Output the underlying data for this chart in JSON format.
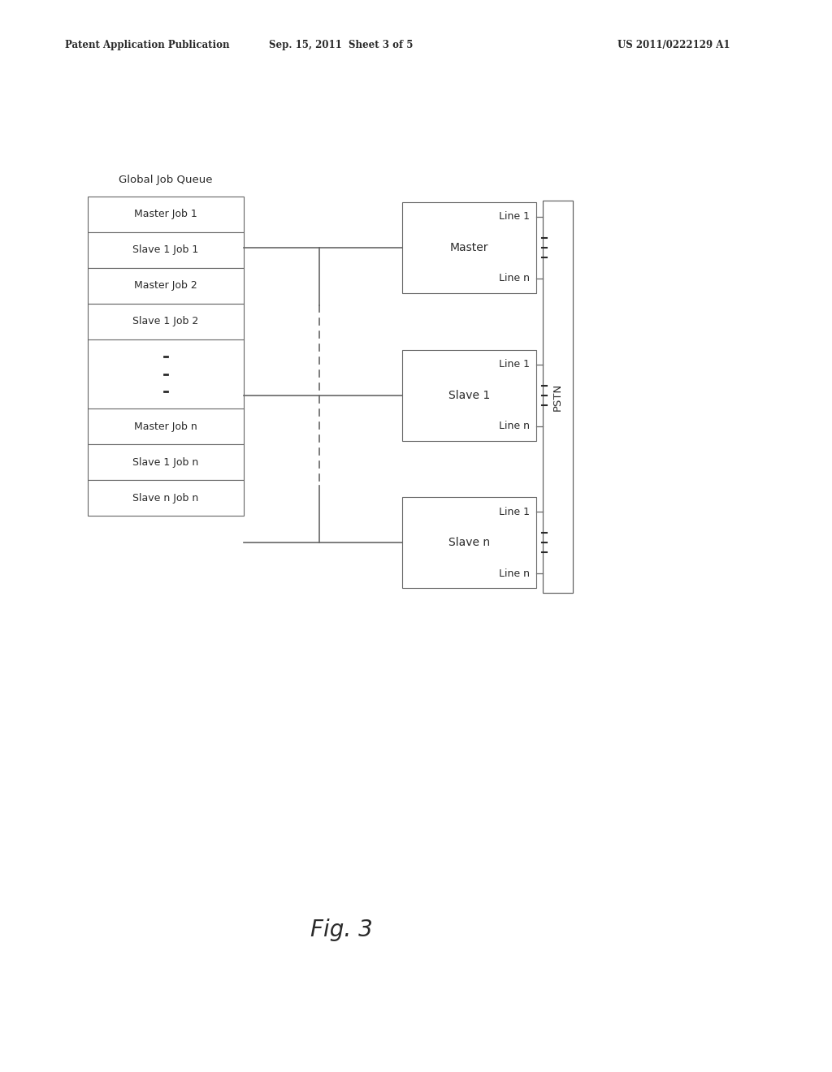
{
  "bg_color": "#ffffff",
  "header_left": "Patent Application Publication",
  "header_center": "Sep. 15, 2011  Sheet 3 of 5",
  "header_right": "US 2011/0222129 A1",
  "figure_label": "Fig. 3",
  "queue_label": "Global Job Queue",
  "rows_top": [
    "Master Job 1",
    "Slave 1 Job 1",
    "Master Job 2",
    "Slave 1 Job 2"
  ],
  "rows_bot": [
    "Master Job n",
    "Slave 1 Job n",
    "Slave n Job n"
  ],
  "node_boxes": [
    {
      "label": "Master",
      "line1": "Line 1",
      "linen": "Line n"
    },
    {
      "label": "Slave 1",
      "line1": "Line 1",
      "linen": "Line n"
    },
    {
      "label": "Slave n",
      "line1": "Line 1",
      "linen": "Line n"
    }
  ],
  "pstn_label": "PSTN",
  "text_color": "#2a2a2a",
  "box_edge_color": "#666666",
  "line_color": "#666666"
}
